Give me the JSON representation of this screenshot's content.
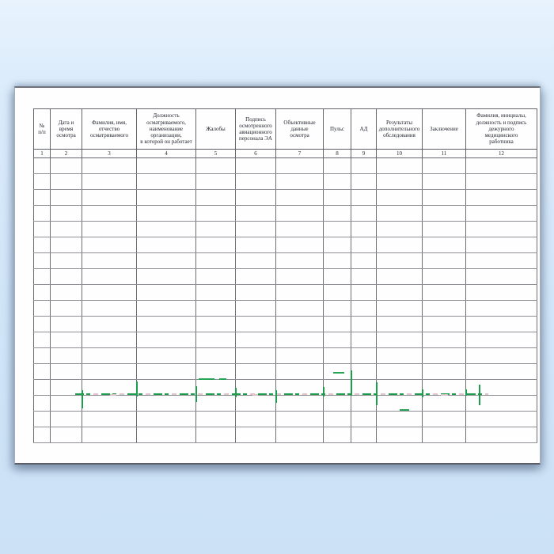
{
  "page": {
    "background_top_color": "#e8f3fd",
    "background_bottom_color": "#cce1f6",
    "paper_color": "#fefefe",
    "grid_line_color": "#6d6f75",
    "registration_mark_color": "#1d9c4b"
  },
  "table": {
    "columns": [
      {
        "num": "1",
        "label": "№\nп/п"
      },
      {
        "num": "2",
        "label": "Дата и\nвремя\nосмотра"
      },
      {
        "num": "3",
        "label": "Фамилия, имя,\nотчество\nосматриваемого"
      },
      {
        "num": "4",
        "label": "Должность\nосматриваемого,\nнаименование\nорганизации,\nв которой он работает"
      },
      {
        "num": "5",
        "label": "Жалобы"
      },
      {
        "num": "6",
        "label": "Подпись\nосмотренного\nавиационного\nперсонала ЭА"
      },
      {
        "num": "7",
        "label": "Объективные\nданные\nосмотра"
      },
      {
        "num": "8",
        "label": "Пульс"
      },
      {
        "num": "9",
        "label": "АД"
      },
      {
        "num": "10",
        "label": "Результаты\nдополнительного\nобследования"
      },
      {
        "num": "11",
        "label": "Заключение"
      },
      {
        "num": "12",
        "label": "Фамилия, инициалы,\nдолжность и подпись\nдежурного\nмедицинского\nработника"
      }
    ],
    "empty_row_count": 18
  }
}
